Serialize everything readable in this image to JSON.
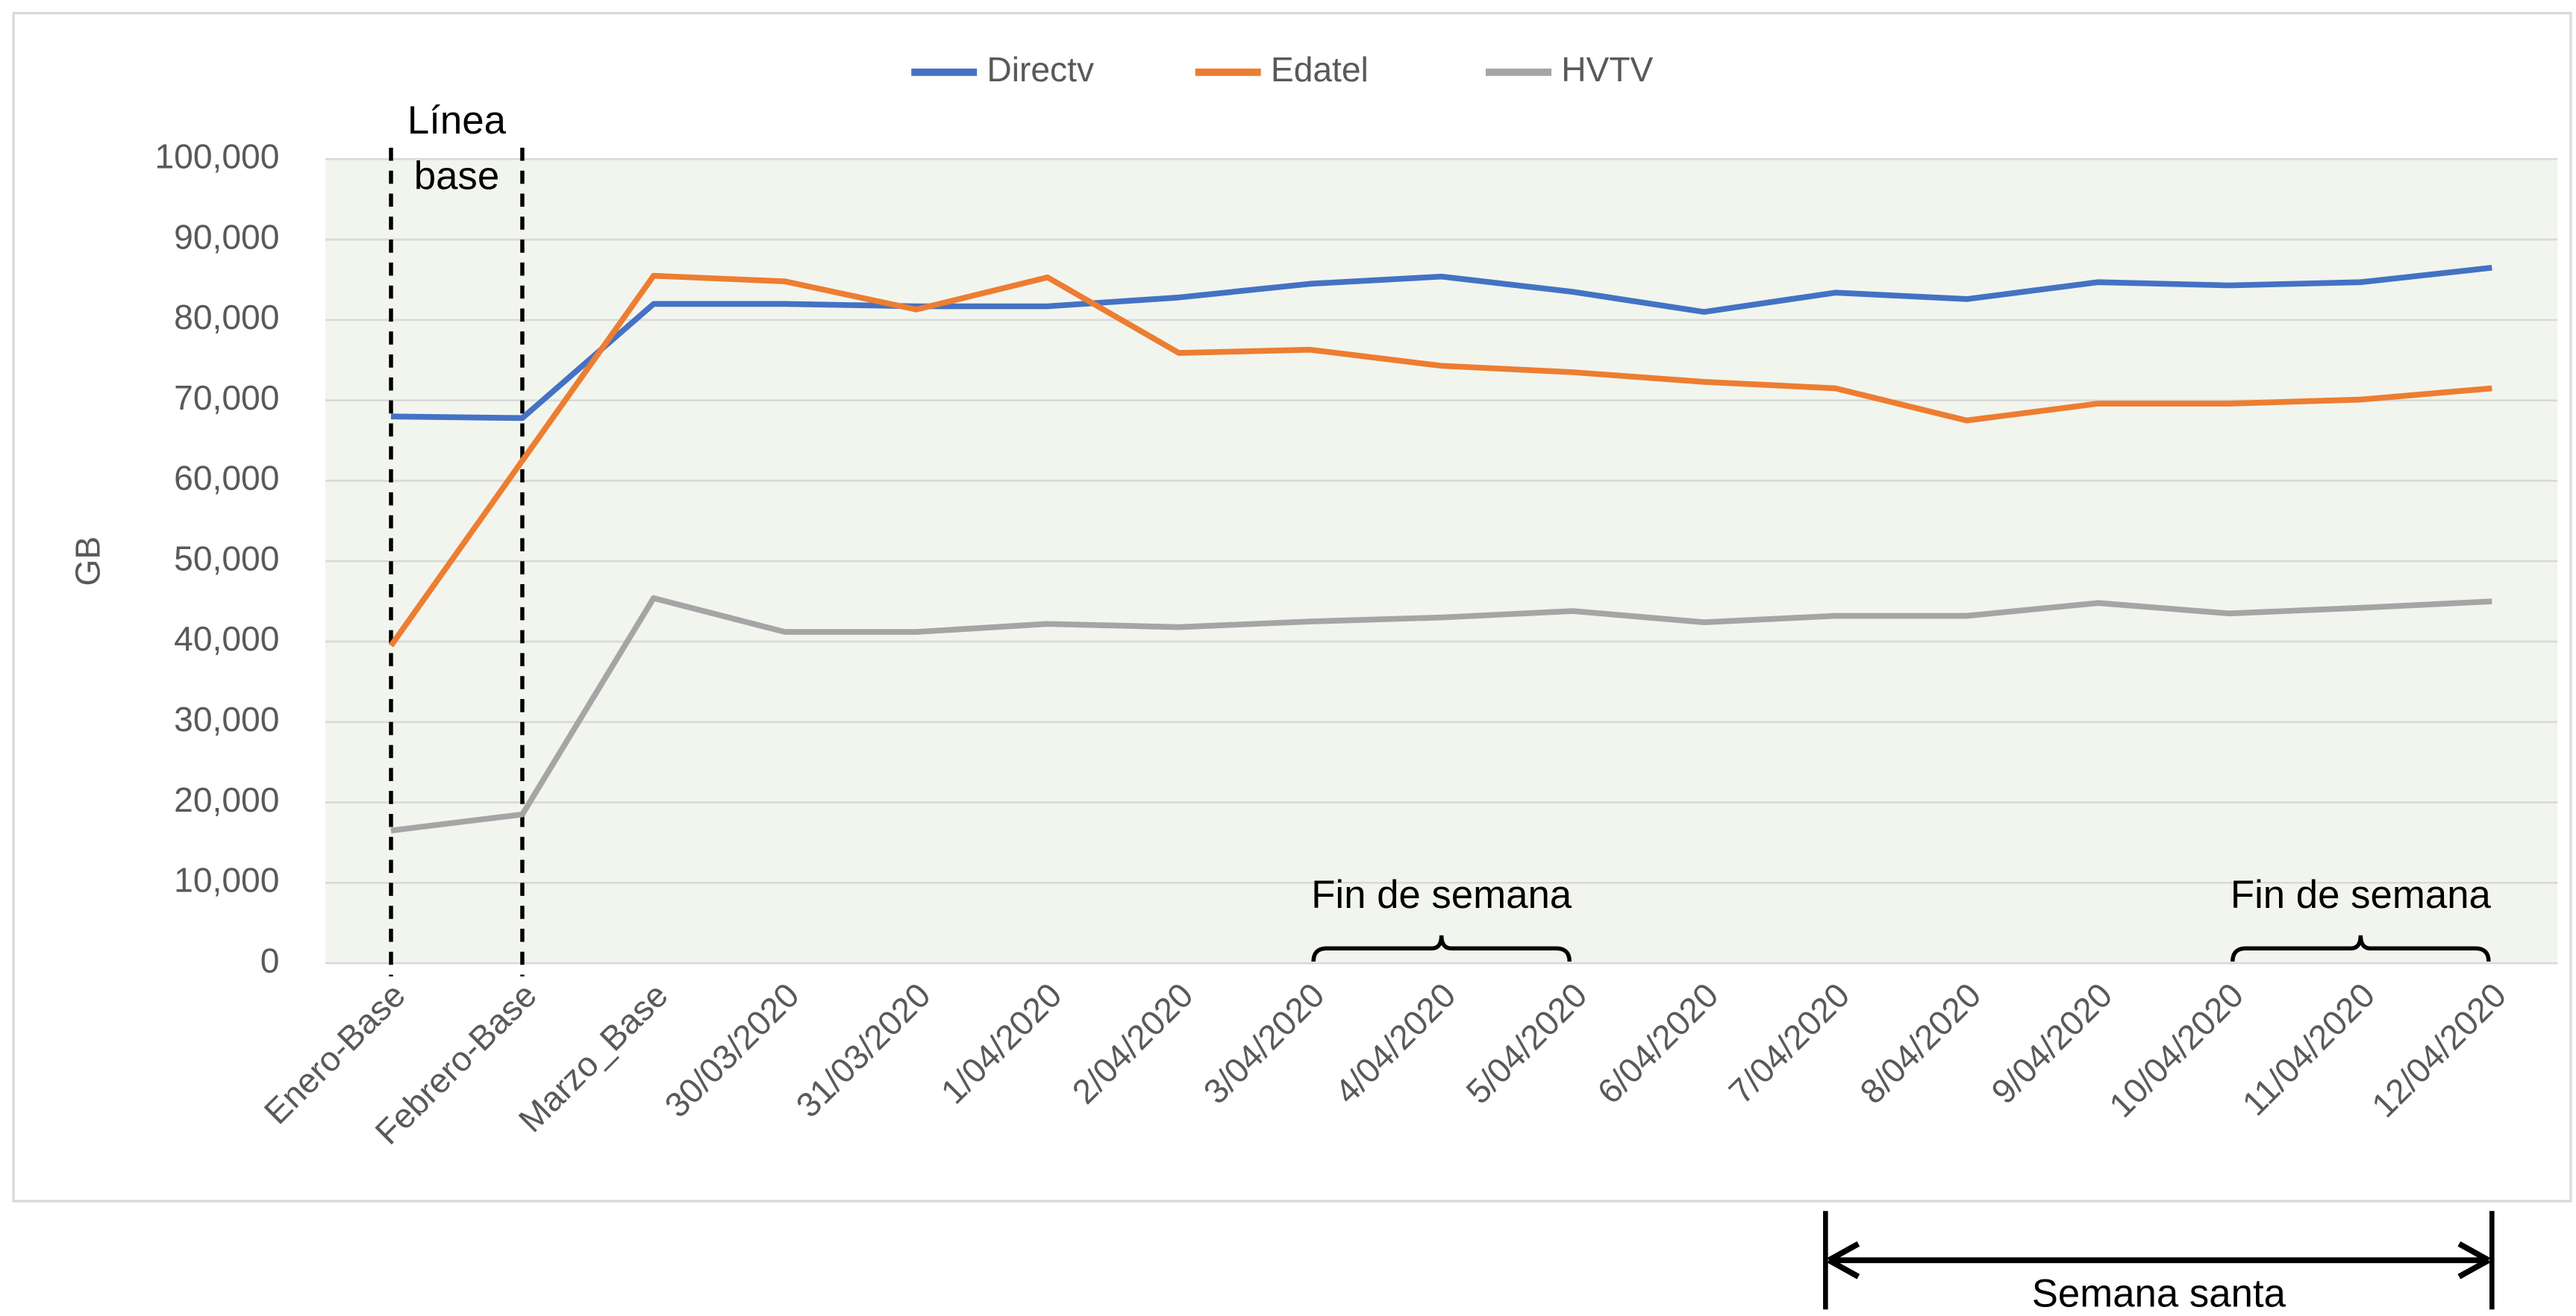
{
  "chart_data": {
    "type": "line",
    "ylabel": "GB",
    "categories": [
      "Enero-Base",
      "Febrero-Base",
      "Marzo_Base",
      "30/03/2020",
      "31/03/2020",
      "1/04/2020",
      "2/04/2020",
      "3/04/2020",
      "4/04/2020",
      "5/04/2020",
      "6/04/2020",
      "7/04/2020",
      "8/04/2020",
      "9/04/2020",
      "10/04/2020",
      "11/04/2020",
      "12/04/2020"
    ],
    "series": [
      {
        "name": "Directv",
        "color": "#4472c4",
        "values": [
          68000,
          67800,
          82000,
          82000,
          81700,
          81700,
          82800,
          84500,
          85400,
          83500,
          81000,
          83400,
          82600,
          84700,
          84300,
          84700,
          86500
        ]
      },
      {
        "name": "Edatel",
        "color": "#ed7d31",
        "values": [
          39500,
          62500,
          85500,
          84800,
          81300,
          85300,
          75900,
          76300,
          74300,
          73500,
          72300,
          71500,
          67500,
          69600,
          69600,
          70100,
          71500
        ]
      },
      {
        "name": "HVTV",
        "color": "#a5a5a5",
        "values": [
          16500,
          18500,
          45400,
          41200,
          41200,
          42200,
          41800,
          42500,
          43000,
          43800,
          42400,
          43200,
          43200,
          44800,
          43500,
          44200,
          45000
        ]
      }
    ],
    "ylim": [
      0,
      100000
    ],
    "yticks": [
      0,
      {
        "value": 10000,
        "label": "10,000"
      },
      {
        "value": 20000,
        "label": "20,000"
      },
      {
        "value": 30000,
        "label": "30,000"
      },
      {
        "value": 40000,
        "label": "40,000"
      },
      {
        "value": 50000,
        "label": "50,000"
      },
      {
        "value": 60000,
        "label": "60,000"
      },
      {
        "value": 70000,
        "label": "70,000"
      },
      {
        "value": 80000,
        "label": "80,000"
      },
      {
        "value": 90000,
        "label": "90,000"
      },
      {
        "value": 100000,
        "label": "100,000"
      }
    ],
    "grid": true,
    "legend": "top",
    "annotations": {
      "baseline": [
        "Línea",
        "base"
      ],
      "weekend": [
        "Fin de semana",
        "Fin de semana"
      ],
      "holy_week": "Semana santa"
    }
  }
}
